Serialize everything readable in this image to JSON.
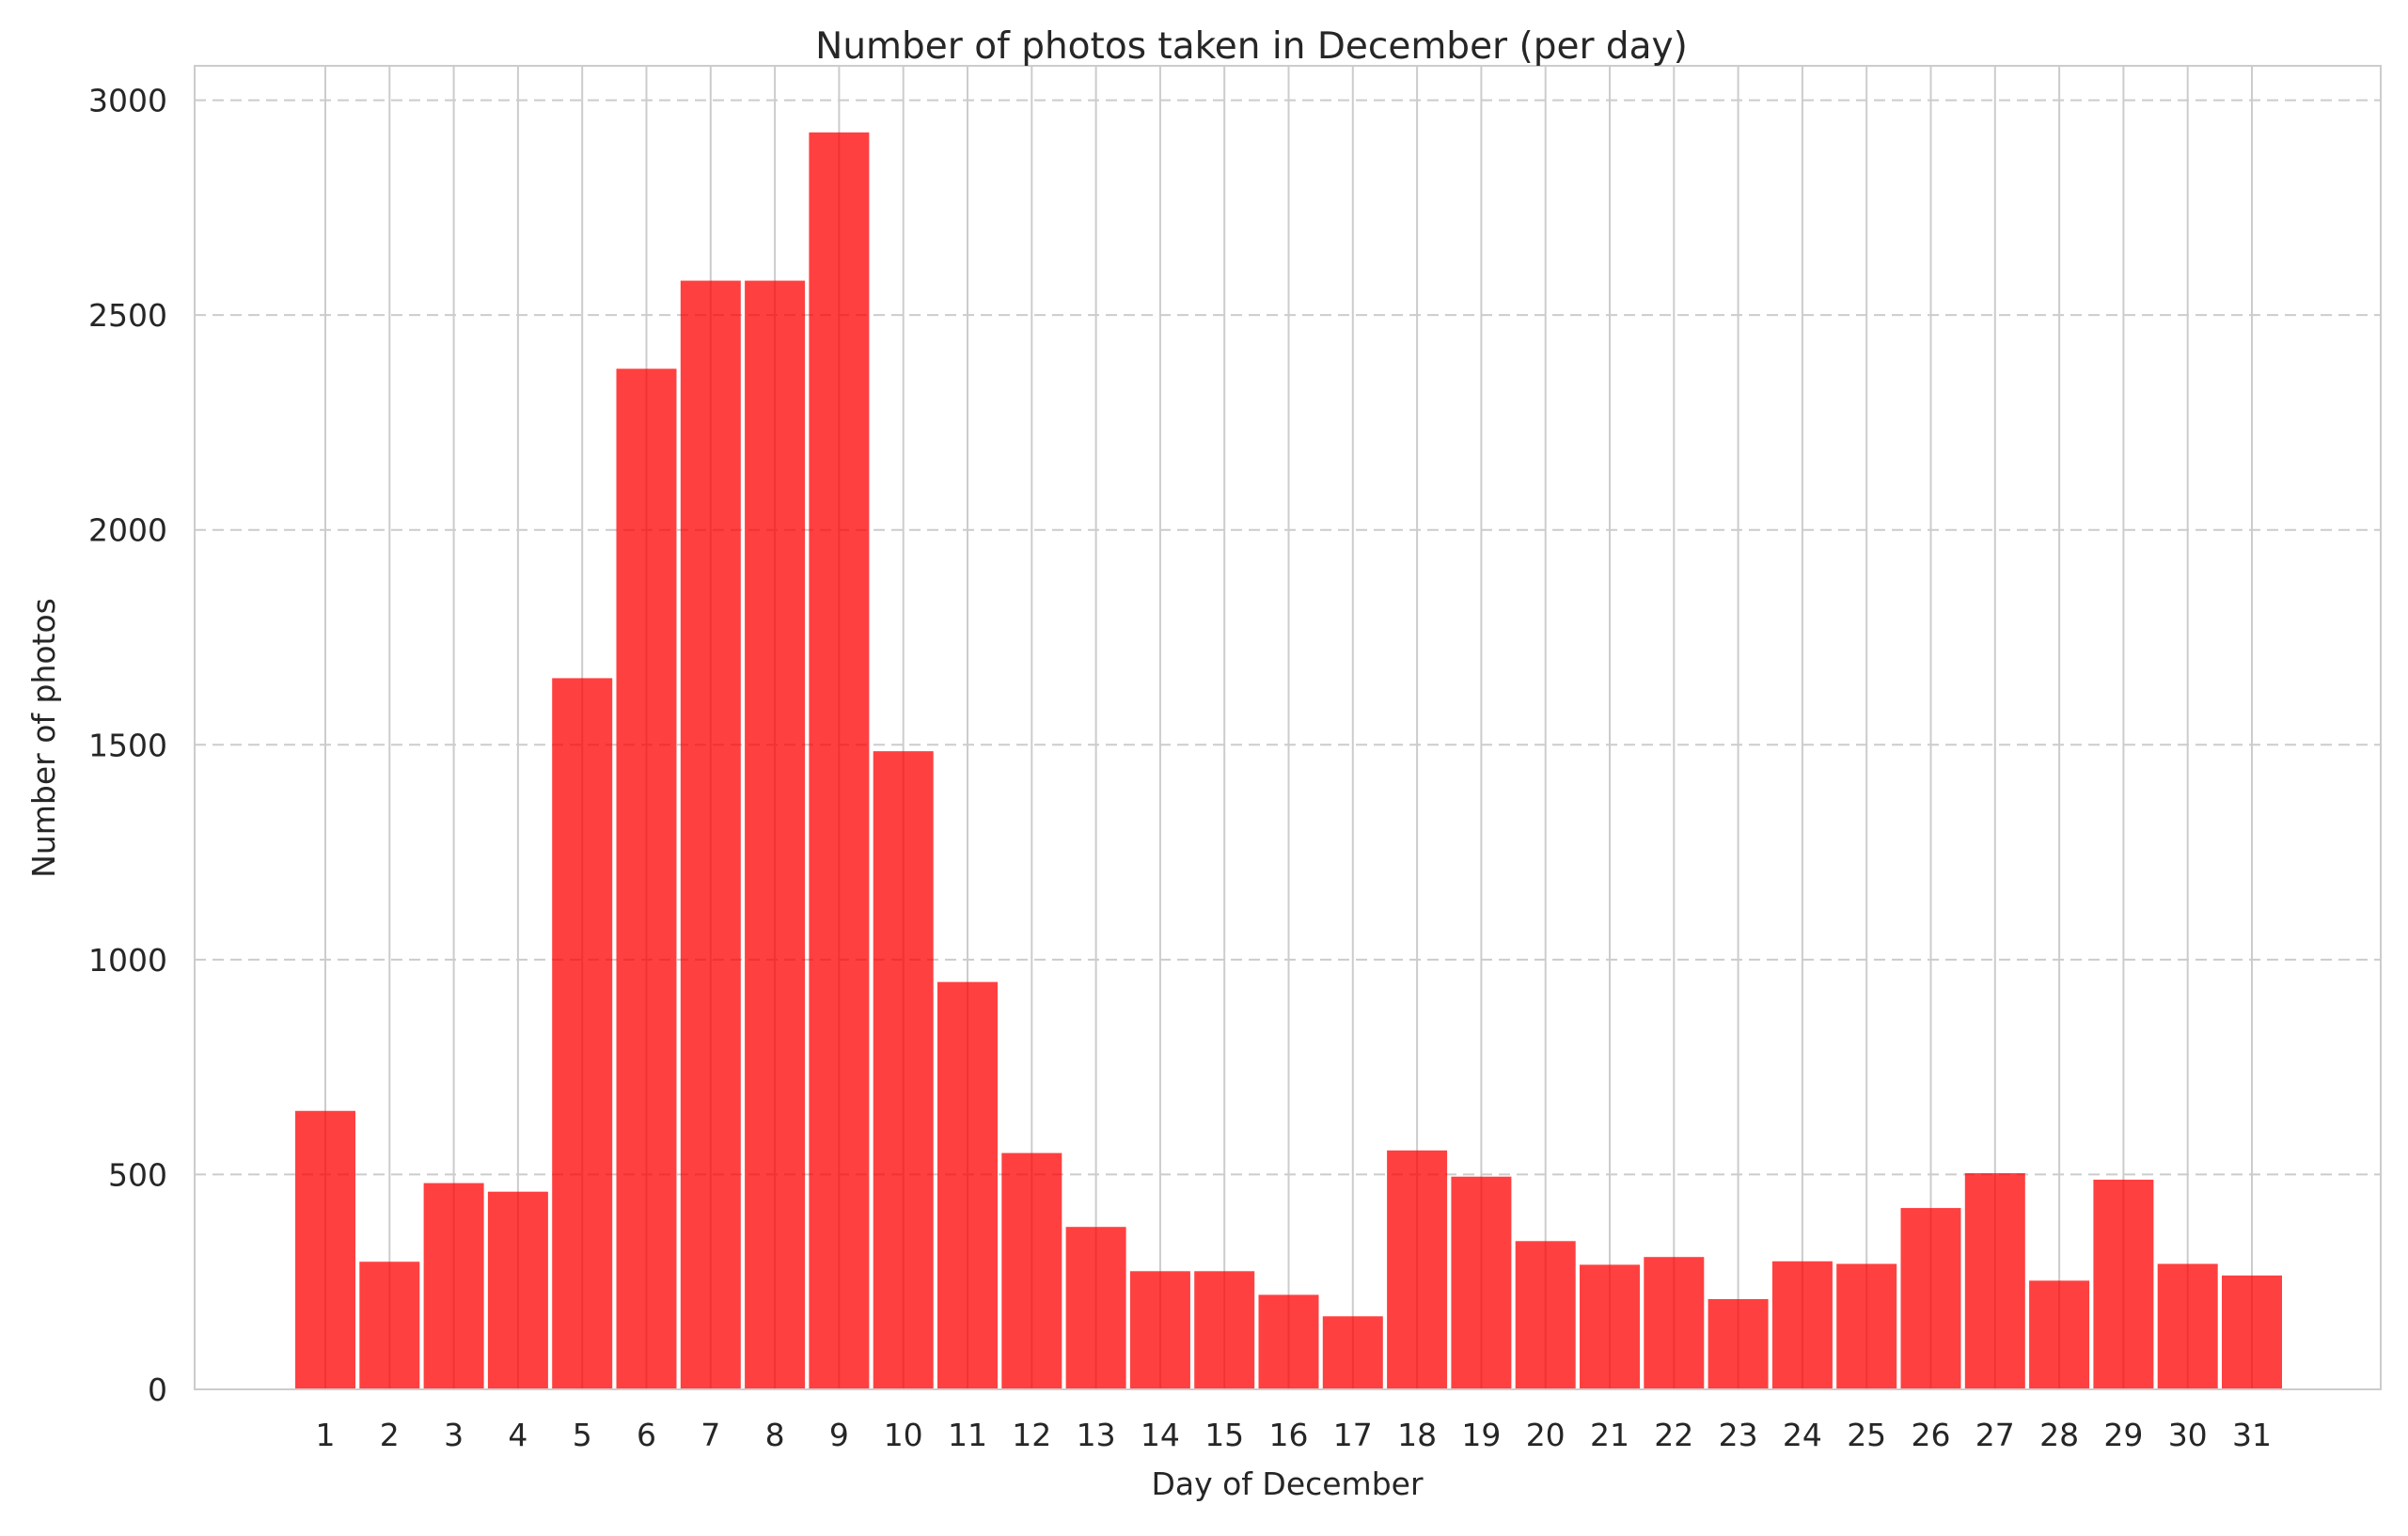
{
  "chart_data": {
    "type": "bar",
    "title": "Number of photos taken in December (per day)",
    "xlabel": "Day of December",
    "ylabel": "Number of photos",
    "categories": [
      "1",
      "2",
      "3",
      "4",
      "5",
      "6",
      "7",
      "8",
      "9",
      "10",
      "11",
      "12",
      "13",
      "14",
      "15",
      "16",
      "17",
      "18",
      "19",
      "20",
      "21",
      "22",
      "23",
      "24",
      "25",
      "26",
      "27",
      "28",
      "29",
      "30",
      "31"
    ],
    "values": [
      648,
      297,
      480,
      460,
      1655,
      2375,
      2580,
      2580,
      2925,
      1485,
      948,
      550,
      378,
      275,
      275,
      220,
      170,
      556,
      495,
      345,
      290,
      308,
      210,
      298,
      292,
      422,
      503,
      253,
      488,
      292,
      265
    ],
    "ylim": [
      0,
      3080
    ],
    "yticks": [
      0,
      500,
      1000,
      1500,
      2000,
      2500,
      3000
    ],
    "grid": {
      "x": "solid",
      "y": "dashed"
    },
    "colors": {
      "bar": "#ff0000",
      "bar_opacity": 0.75,
      "grid": "#cccccc",
      "spine": "#cccccc",
      "text": "#262626"
    },
    "legend": "none"
  }
}
